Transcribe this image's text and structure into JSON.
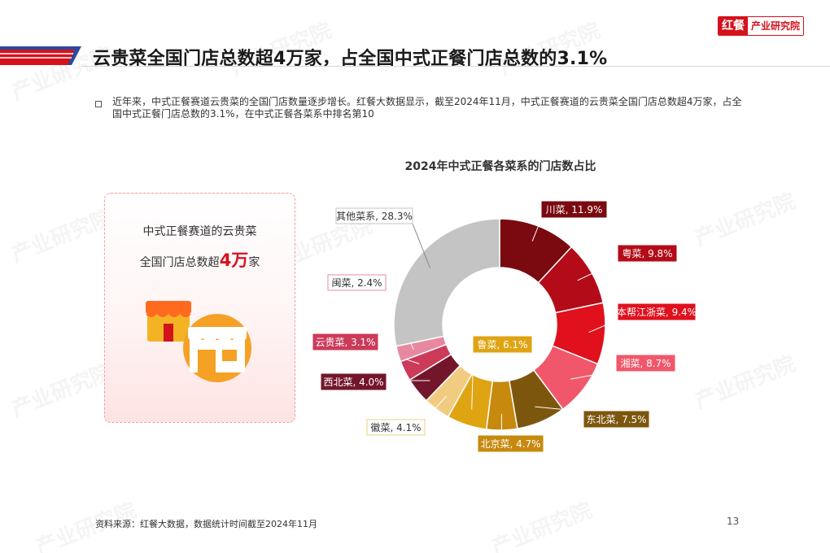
{
  "header": {
    "title": "云贵菜全国门店总数超4万家，占全国中式正餐门店总数的3.1%",
    "brand_mark": "红餐",
    "brand_text": "产业研究院"
  },
  "intro_text": "近年来，中式正餐赛道云贵菜的全国门店数量逐步增长。红餐大数据显示，截至2024年11月，中式正餐赛道的云贵菜全国门店总数超4万家，占全国中式正餐门店总数的3.1%，在中式正餐各菜系中排名第10",
  "card": {
    "line1": "中式正餐赛道的云贵菜",
    "line2_prefix": "全国门店总数超",
    "line2_number": "4万",
    "line2_suffix": "家",
    "icons": [
      "store-icon-small",
      "store-icon-large"
    ]
  },
  "chart_data": {
    "type": "pie",
    "style": "donut",
    "title": "2024年中式正餐各菜系的门店数占比",
    "unit": "%",
    "slices": [
      {
        "label": "川菜",
        "value": 11.9,
        "display": "川菜, 11.9%",
        "color": "#7a0a0f"
      },
      {
        "label": "粤菜",
        "value": 9.8,
        "display": "粤菜, 9.8%",
        "color": "#b30c18"
      },
      {
        "label": "本帮江浙菜",
        "value": 9.4,
        "display": "本帮江浙菜, 9.4%",
        "color": "#e0101d"
      },
      {
        "label": "湘菜",
        "value": 8.7,
        "display": "湘菜, 8.7%",
        "color": "#f0576a"
      },
      {
        "label": "东北菜",
        "value": 7.5,
        "display": "东北菜, 7.5%",
        "color": "#7d560e"
      },
      {
        "label": "北京菜",
        "value": 4.7,
        "display": "北京菜, 4.7%",
        "color": "#c7890e"
      },
      {
        "label": "鲁菜",
        "value": 6.1,
        "display": "鲁菜, 6.1%",
        "color": "#dfa412"
      },
      {
        "label": "徽菜",
        "value": 4.1,
        "display": "徽菜, 4.1%",
        "color": "#f1cc80"
      },
      {
        "label": "西北菜",
        "value": 4.0,
        "display": "西北菜, 4.0%",
        "color": "#74162b"
      },
      {
        "label": "云贵菜",
        "value": 3.1,
        "display": "云贵菜, 3.1%",
        "color": "#cc3a5a"
      },
      {
        "label": "闽菜",
        "value": 2.4,
        "display": "闽菜, 2.4%",
        "color": "#e788a0"
      },
      {
        "label": "其他菜系",
        "value": 28.3,
        "display": "其他菜系, 28.3%",
        "color": "#c4c4c4"
      }
    ]
  },
  "footer": {
    "source": "资料来源：红餐大数据，数据统计时间截至2024年11月",
    "page_number": "13"
  },
  "colors": {
    "brand_red": "#d4121c",
    "stripe_blue": "#2b4a9c"
  }
}
